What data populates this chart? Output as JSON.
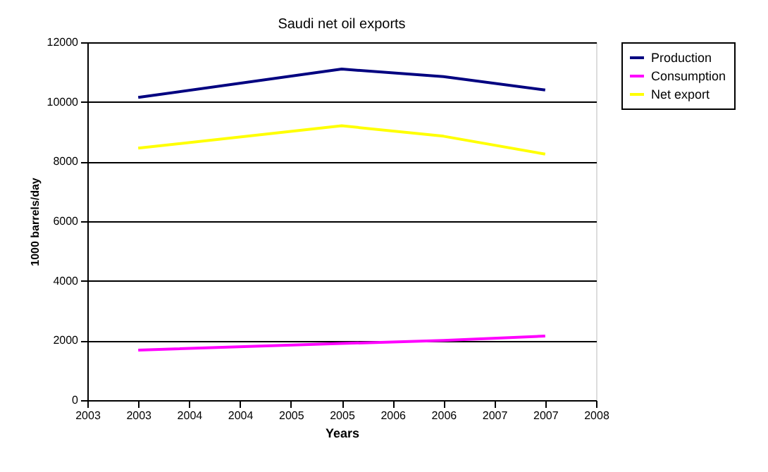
{
  "chart_data": {
    "type": "line",
    "title": "Saudi net oil exports",
    "xlabel": "Years",
    "ylabel": "1000 barrels/day",
    "x": [
      2003,
      2005,
      2006,
      2007
    ],
    "series": [
      {
        "name": "Production",
        "color": "#000080",
        "values": [
          10150,
          11100,
          10850,
          10400
        ]
      },
      {
        "name": "Consumption",
        "color": "#ff00ff",
        "values": [
          1680,
          1900,
          2000,
          2150
        ]
      },
      {
        "name": "Net export",
        "color": "#ffff00",
        "values": [
          8450,
          9200,
          8850,
          8250
        ]
      }
    ],
    "xlim": [
      2002.5,
      2007.5
    ],
    "xticks": [
      {
        "value": 2002.5,
        "label": "2003"
      },
      {
        "value": 2003,
        "label": "2003"
      },
      {
        "value": 2003.5,
        "label": "2004"
      },
      {
        "value": 2004,
        "label": "2004"
      },
      {
        "value": 2004.5,
        "label": "2005"
      },
      {
        "value": 2005,
        "label": "2005"
      },
      {
        "value": 2005.5,
        "label": "2006"
      },
      {
        "value": 2006,
        "label": "2006"
      },
      {
        "value": 2006.5,
        "label": "2007"
      },
      {
        "value": 2007,
        "label": "2007"
      },
      {
        "value": 2007.5,
        "label": "2008"
      }
    ],
    "ylim": [
      0,
      12000
    ],
    "yticks": [
      0,
      2000,
      4000,
      6000,
      8000,
      10000,
      12000
    ],
    "grid": "y",
    "legend": "right",
    "marker": "none",
    "line_style": "solid"
  }
}
